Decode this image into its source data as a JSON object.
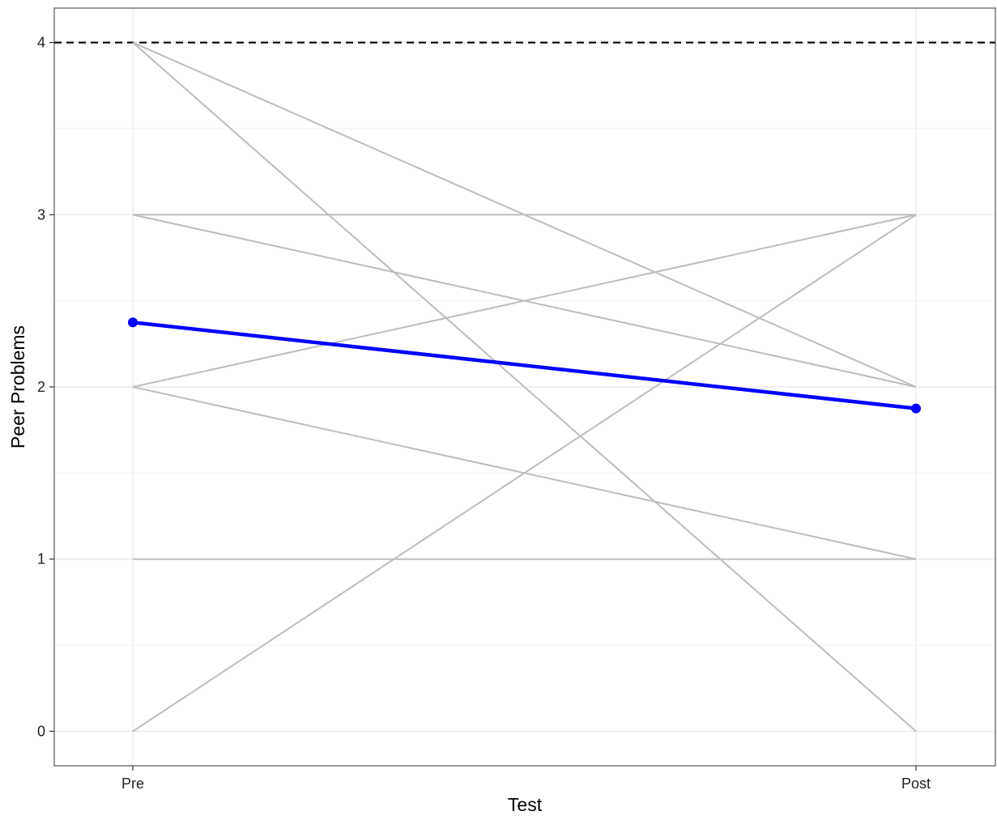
{
  "chart_data": {
    "type": "line",
    "title": "",
    "xlabel": "Test",
    "ylabel": "Peer Problems",
    "categories": [
      "Pre",
      "Post"
    ],
    "y_ticks": [
      0,
      1,
      2,
      3,
      4
    ],
    "ylim": [
      -0.2,
      4.2
    ],
    "grid": true,
    "reference_line": {
      "y": 4,
      "style": "dashed",
      "color": "#000000"
    },
    "individual_lines": {
      "color": "#bdbdbd",
      "series": [
        {
          "values": [
            4,
            2
          ]
        },
        {
          "values": [
            4,
            0
          ]
        },
        {
          "values": [
            3,
            3
          ]
        },
        {
          "values": [
            3,
            2
          ]
        },
        {
          "values": [
            2,
            3
          ]
        },
        {
          "values": [
            2,
            1
          ]
        },
        {
          "values": [
            1,
            1
          ]
        },
        {
          "values": [
            0,
            3
          ]
        }
      ]
    },
    "mean_line": {
      "color": "#0000ff",
      "values": [
        2.375,
        1.875
      ]
    }
  }
}
